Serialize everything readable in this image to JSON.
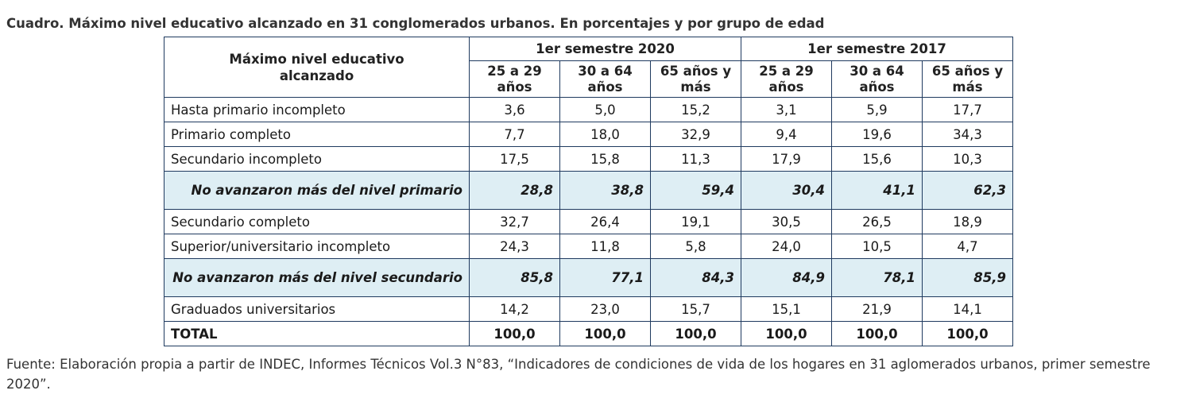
{
  "title": "Cuadro. Máximo nivel educativo alcanzado en 31 conglomerados urbanos. En porcentajes y por grupo de edad",
  "table": {
    "label_header_1": "Máximo nivel educativo",
    "label_header_2": "alcanzado",
    "periods": [
      "1er semestre 2020",
      "1er semestre 2017"
    ],
    "age_groups": [
      [
        "25 a 29",
        "años"
      ],
      [
        "30 a 64",
        "años"
      ],
      [
        "65 años y",
        "más"
      ],
      [
        "25 a 29",
        "años"
      ],
      [
        "30 a 64",
        "años"
      ],
      [
        "65 años y",
        "más"
      ]
    ],
    "rows": [
      {
        "label": "Hasta primario incompleto",
        "values": [
          "3,6",
          "5,0",
          "15,2",
          "3,1",
          "5,9",
          "17,7"
        ]
      },
      {
        "label": "Primario completo",
        "values": [
          "7,7",
          "18,0",
          "32,9",
          "9,4",
          "19,6",
          "34,3"
        ]
      },
      {
        "label": "Secundario incompleto",
        "values": [
          "17,5",
          "15,8",
          "11,3",
          "17,9",
          "15,6",
          "10,3"
        ]
      },
      {
        "label": "No avanzaron más del nivel primario",
        "values": [
          "28,8",
          "38,8",
          "59,4",
          "30,4",
          "41,1",
          "62,3"
        ],
        "summary": true
      },
      {
        "label": "Secundario completo",
        "values": [
          "32,7",
          "26,4",
          "19,1",
          "30,5",
          "26,5",
          "18,9"
        ]
      },
      {
        "label": "Superior/universitario incompleto",
        "values": [
          "24,3",
          "11,8",
          "5,8",
          "24,0",
          "10,5",
          "4,7"
        ]
      },
      {
        "label": "No avanzaron más del nivel secundario",
        "values": [
          "85,8",
          "77,1",
          "84,3",
          "84,9",
          "78,1",
          "85,9"
        ],
        "summary": true
      },
      {
        "label": "Graduados universitarios",
        "values": [
          "14,2",
          "23,0",
          "15,7",
          "15,1",
          "21,9",
          "14,1"
        ]
      },
      {
        "label": "TOTAL",
        "values": [
          "100,0",
          "100,0",
          "100,0",
          "100,0",
          "100,0",
          "100,0"
        ],
        "total": true
      }
    ]
  },
  "source": "Fuente: Elaboración propia a partir de INDEC, Informes Técnicos Vol.3 N°83, “Indicadores de condiciones de vida de los hogares en 31 aglomerados urbanos, primer semestre 2020”."
}
